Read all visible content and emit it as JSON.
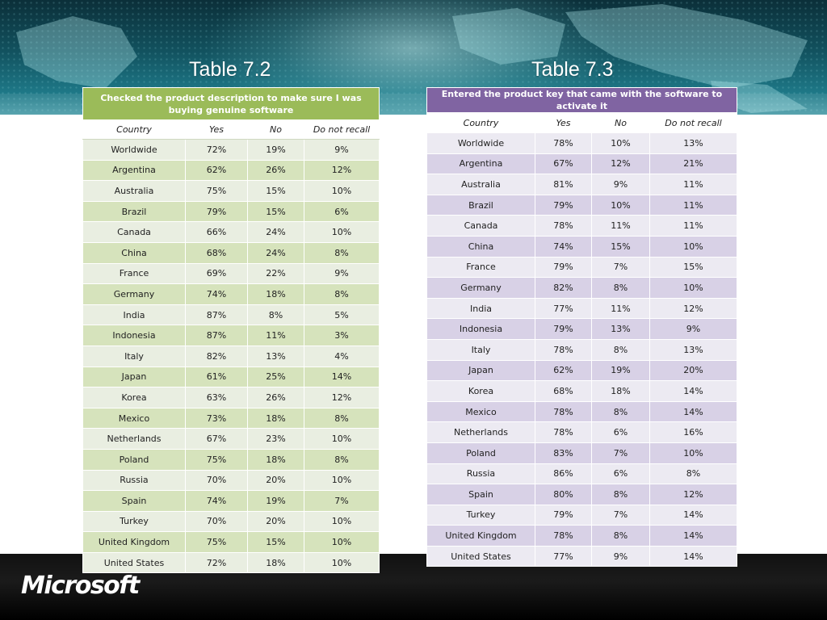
{
  "colors": {
    "table72_header": "#9bbb59",
    "table72_band": "#d6e3bc",
    "table73_header": "#8064a2",
    "table73_band": "#d8d1e6",
    "top_band": "#12525f",
    "footer": "#000000"
  },
  "brand": {
    "logo_text": "Microsoft"
  },
  "table72": {
    "title": "Table 7.2",
    "header": "Checked the product description to make sure I was buying genuine software",
    "columns": [
      "Country",
      "Yes",
      "No",
      "Do not recall"
    ],
    "rows": [
      [
        "Worldwide",
        "72%",
        "19%",
        "9%"
      ],
      [
        "Argentina",
        "62%",
        "26%",
        "12%"
      ],
      [
        "Australia",
        "75%",
        "15%",
        "10%"
      ],
      [
        "Brazil",
        "79%",
        "15%",
        "6%"
      ],
      [
        "Canada",
        "66%",
        "24%",
        "10%"
      ],
      [
        "China",
        "68%",
        "24%",
        "8%"
      ],
      [
        "France",
        "69%",
        "22%",
        "9%"
      ],
      [
        "Germany",
        "74%",
        "18%",
        "8%"
      ],
      [
        "India",
        "87%",
        "8%",
        "5%"
      ],
      [
        "Indonesia",
        "87%",
        "11%",
        "3%"
      ],
      [
        "Italy",
        "82%",
        "13%",
        "4%"
      ],
      [
        "Japan",
        "61%",
        "25%",
        "14%"
      ],
      [
        "Korea",
        "63%",
        "26%",
        "12%"
      ],
      [
        "Mexico",
        "73%",
        "18%",
        "8%"
      ],
      [
        "Netherlands",
        "67%",
        "23%",
        "10%"
      ],
      [
        "Poland",
        "75%",
        "18%",
        "8%"
      ],
      [
        "Russia",
        "70%",
        "20%",
        "10%"
      ],
      [
        "Spain",
        "74%",
        "19%",
        "7%"
      ],
      [
        "Turkey",
        "70%",
        "20%",
        "10%"
      ],
      [
        "United Kingdom",
        "75%",
        "15%",
        "10%"
      ],
      [
        "United States",
        "72%",
        "18%",
        "10%"
      ]
    ]
  },
  "table73": {
    "title": "Table 7.3",
    "header": "Entered the product key that came with the software to activate it",
    "columns": [
      "Country",
      "Yes",
      "No",
      "Do not recall"
    ],
    "rows": [
      [
        "Worldwide",
        "78%",
        "10%",
        "13%"
      ],
      [
        "Argentina",
        "67%",
        "12%",
        "21%"
      ],
      [
        "Australia",
        "81%",
        "9%",
        "11%"
      ],
      [
        "Brazil",
        "79%",
        "10%",
        "11%"
      ],
      [
        "Canada",
        "78%",
        "11%",
        "11%"
      ],
      [
        "China",
        "74%",
        "15%",
        "10%"
      ],
      [
        "France",
        "79%",
        "7%",
        "15%"
      ],
      [
        "Germany",
        "82%",
        "8%",
        "10%"
      ],
      [
        "India",
        "77%",
        "11%",
        "12%"
      ],
      [
        "Indonesia",
        "79%",
        "13%",
        "9%"
      ],
      [
        "Italy",
        "78%",
        "8%",
        "13%"
      ],
      [
        "Japan",
        "62%",
        "19%",
        "20%"
      ],
      [
        "Korea",
        "68%",
        "18%",
        "14%"
      ],
      [
        "Mexico",
        "78%",
        "8%",
        "14%"
      ],
      [
        "Netherlands",
        "78%",
        "6%",
        "16%"
      ],
      [
        "Poland",
        "83%",
        "7%",
        "10%"
      ],
      [
        "Russia",
        "86%",
        "6%",
        "8%"
      ],
      [
        "Spain",
        "80%",
        "8%",
        "12%"
      ],
      [
        "Turkey",
        "79%",
        "7%",
        "14%"
      ],
      [
        "United Kingdom",
        "78%",
        "8%",
        "14%"
      ],
      [
        "United States",
        "77%",
        "9%",
        "14%"
      ]
    ]
  }
}
